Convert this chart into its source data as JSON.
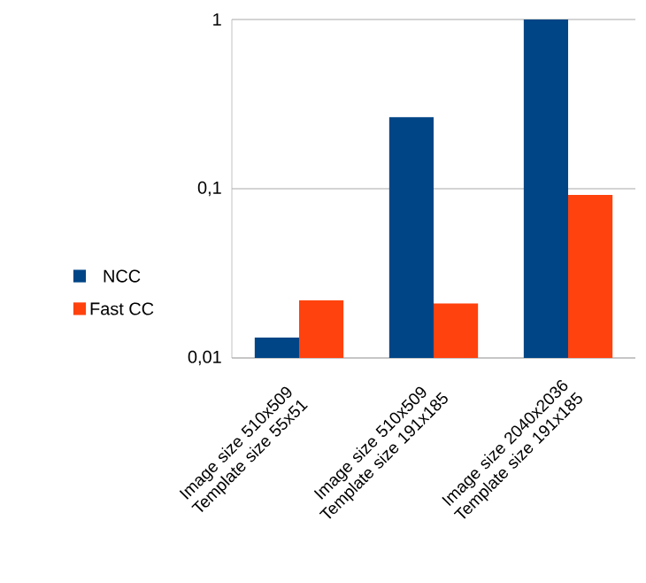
{
  "chart_data": {
    "type": "bar",
    "categories": [
      "Image size 510x509 Template size 55x51",
      "Image size 510x509 Template size 191x185",
      "Image size 2040x2036 Template size 191x185"
    ],
    "series": [
      {
        "name": "NCC",
        "color": "#004586",
        "values": [
          0.0132,
          0.265,
          1.0
        ]
      },
      {
        "name": "Fast CC",
        "color": "#ff420e",
        "values": [
          0.0219,
          0.021,
          0.092
        ]
      }
    ],
    "log": "y",
    "ylim": [
      0.01,
      1
    ],
    "yticks": [
      {
        "value": 0.01,
        "label": "0,01"
      },
      {
        "value": 0.1,
        "label": "0,1"
      },
      {
        "value": 1,
        "label": "1"
      }
    ],
    "grid": "y",
    "legend": "left"
  }
}
